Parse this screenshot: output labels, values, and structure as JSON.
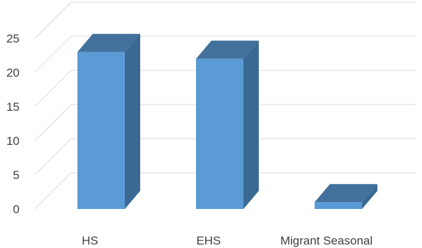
{
  "chart_data": {
    "type": "bar",
    "style": "3d-column",
    "title": "",
    "xlabel": "",
    "ylabel": "",
    "categories": [
      "HS",
      "EHS",
      "Migrant Seasonal"
    ],
    "values": [
      23,
      22,
      1
    ],
    "ylim": [
      0,
      25
    ],
    "yticks": [
      0,
      5,
      10,
      15,
      20,
      25
    ],
    "grid": true,
    "legend": "none",
    "colors": {
      "front": "#5b9bd5",
      "top": "#41719c",
      "side": "#3a6a93",
      "grid": "#d9d9d9",
      "text": "#404040"
    }
  }
}
